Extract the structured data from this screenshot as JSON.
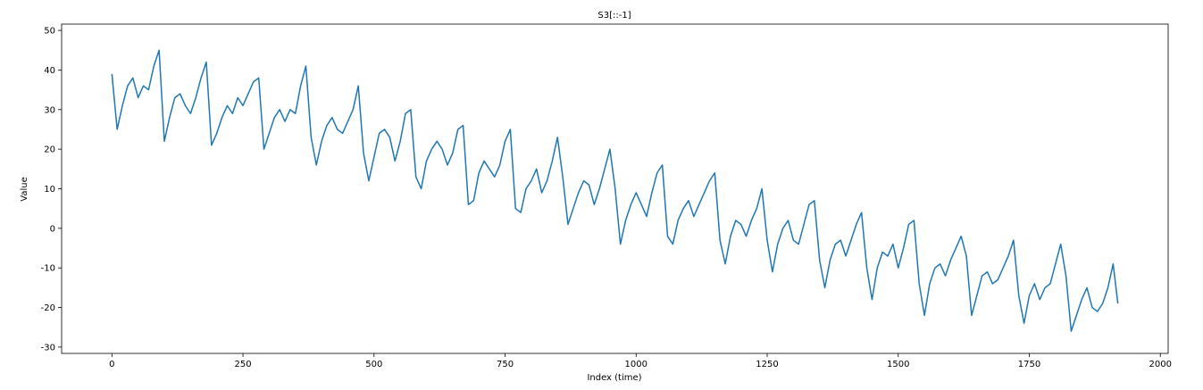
{
  "chart_data": {
    "type": "line",
    "title": "S3[::-1]",
    "x_label": "Index (time)",
    "y_label": "Value",
    "x": [
      0,
      10,
      20,
      30,
      40,
      50,
      60,
      70,
      80,
      90,
      100,
      110,
      120,
      130,
      140,
      150,
      160,
      170,
      180,
      190,
      200,
      210,
      220,
      230,
      240,
      250,
      260,
      270,
      280,
      290,
      300,
      310,
      320,
      330,
      340,
      350,
      360,
      370,
      380,
      390,
      400,
      410,
      420,
      430,
      440,
      450,
      460,
      470,
      480,
      490,
      500,
      510,
      520,
      530,
      540,
      550,
      560,
      570,
      580,
      590,
      600,
      610,
      620,
      630,
      640,
      650,
      660,
      670,
      680,
      690,
      700,
      710,
      720,
      730,
      740,
      750,
      760,
      770,
      780,
      790,
      800,
      810,
      820,
      830,
      840,
      850,
      860,
      870,
      880,
      890,
      900,
      910,
      920,
      930,
      940,
      950,
      960,
      970,
      980,
      990,
      1000,
      1010,
      1020,
      1030,
      1040,
      1050,
      1060,
      1070,
      1080,
      1090,
      1100,
      1110,
      1120,
      1130,
      1140,
      1150,
      1160,
      1170,
      1180,
      1190,
      1200,
      1210,
      1220,
      1230,
      1240,
      1250,
      1260,
      1270,
      1280,
      1290,
      1300,
      1310,
      1320,
      1330,
      1340,
      1350,
      1360,
      1370,
      1380,
      1390,
      1400,
      1410,
      1420,
      1430,
      1440,
      1450,
      1460,
      1470,
      1480,
      1490,
      1500,
      1510,
      1520,
      1530,
      1540,
      1550,
      1560,
      1570,
      1580,
      1590,
      1600,
      1610,
      1620,
      1630,
      1640,
      1650,
      1660,
      1670,
      1680,
      1690,
      1700,
      1710,
      1720,
      1730,
      1740,
      1750,
      1760,
      1770,
      1780,
      1790,
      1800,
      1810,
      1820,
      1830,
      1840,
      1850,
      1860,
      1870,
      1880,
      1890,
      1900,
      1910,
      1919
    ],
    "values": [
      39,
      25,
      31,
      36,
      38,
      33,
      36,
      35,
      41,
      45,
      22,
      28,
      33,
      34,
      31,
      29,
      33,
      38,
      42,
      21,
      24,
      28,
      31,
      29,
      33,
      31,
      34,
      37,
      38,
      20,
      24,
      28,
      30,
      27,
      30,
      29,
      36,
      41,
      23,
      16,
      22,
      26,
      28,
      25,
      24,
      27,
      30,
      36,
      19,
      12,
      18,
      24,
      25,
      23,
      17,
      22,
      29,
      30,
      13,
      10,
      17,
      20,
      22,
      20,
      16,
      19,
      25,
      26,
      6,
      7,
      14,
      17,
      15,
      13,
      16,
      22,
      25,
      5,
      4,
      10,
      12,
      15,
      9,
      12,
      17,
      23,
      13,
      1,
      5,
      9,
      12,
      11,
      6,
      10,
      15,
      20,
      10,
      -4,
      2,
      6,
      9,
      6,
      3,
      9,
      14,
      16,
      -2,
      -4,
      2,
      5,
      7,
      3,
      6,
      9,
      12,
      14,
      -3,
      -9,
      -2,
      2,
      1,
      -2,
      2,
      5,
      10,
      -3,
      -11,
      -4,
      0,
      2,
      -3,
      -4,
      1,
      6,
      7,
      -8,
      -15,
      -8,
      -4,
      -3,
      -7,
      -3,
      1,
      4,
      -10,
      -18,
      -10,
      -6,
      -7,
      -4,
      -10,
      -5,
      1,
      2,
      -14,
      -22,
      -14,
      -10,
      -9,
      -12,
      -8,
      -5,
      -2,
      -7,
      -22,
      -17,
      -12,
      -11,
      -14,
      -13,
      -10,
      -7,
      -3,
      -17,
      -24,
      -17,
      -14,
      -18,
      -15,
      -14,
      -9,
      -4,
      -12,
      -26,
      -22,
      -18,
      -15,
      -20,
      -21,
      -19,
      -15,
      -9,
      -19
    ],
    "color": "#1f77b4",
    "xlim": [
      -95.95,
      2014.95
    ],
    "ylim": [
      -31.6,
      51.6
    ],
    "xticks": [
      0,
      250,
      500,
      750,
      1000,
      1250,
      1500,
      1750,
      2000
    ],
    "yticks": [
      -30,
      -20,
      -10,
      0,
      10,
      20,
      30,
      40,
      50
    ]
  }
}
